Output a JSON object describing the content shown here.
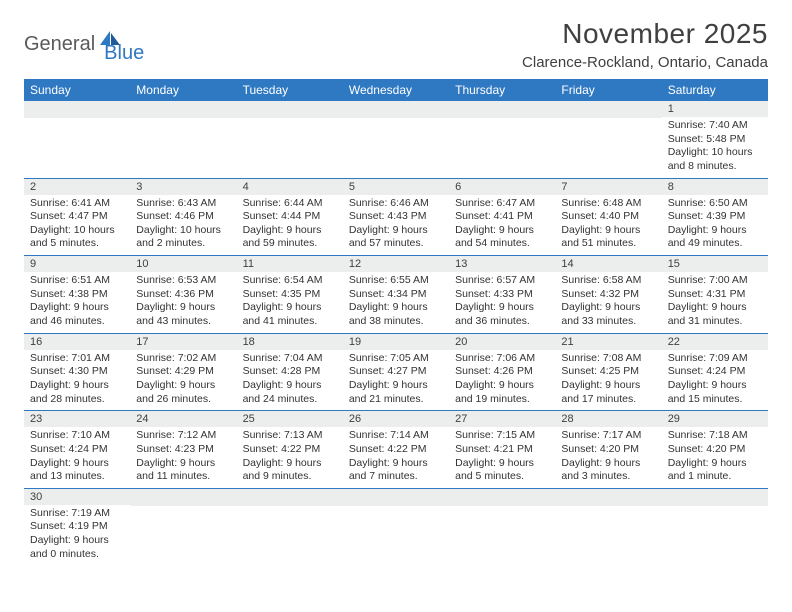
{
  "logo": {
    "part1": "General",
    "part2": "Blue"
  },
  "title": "November 2025",
  "location": "Clarence-Rockland, Ontario, Canada",
  "colors": {
    "header_bg": "#2f78c2",
    "header_text": "#ffffff",
    "daynum_bg": "#eceded",
    "border": "#2f78c2",
    "logo_gray": "#5a5a5a",
    "logo_blue": "#2f78c2",
    "text": "#333333"
  },
  "weekdays": [
    "Sunday",
    "Monday",
    "Tuesday",
    "Wednesday",
    "Thursday",
    "Friday",
    "Saturday"
  ],
  "weeks": [
    [
      null,
      null,
      null,
      null,
      null,
      null,
      {
        "n": "1",
        "sr": "Sunrise: 7:40 AM",
        "ss": "Sunset: 5:48 PM",
        "d1": "Daylight: 10 hours",
        "d2": "and 8 minutes."
      }
    ],
    [
      {
        "n": "2",
        "sr": "Sunrise: 6:41 AM",
        "ss": "Sunset: 4:47 PM",
        "d1": "Daylight: 10 hours",
        "d2": "and 5 minutes."
      },
      {
        "n": "3",
        "sr": "Sunrise: 6:43 AM",
        "ss": "Sunset: 4:46 PM",
        "d1": "Daylight: 10 hours",
        "d2": "and 2 minutes."
      },
      {
        "n": "4",
        "sr": "Sunrise: 6:44 AM",
        "ss": "Sunset: 4:44 PM",
        "d1": "Daylight: 9 hours",
        "d2": "and 59 minutes."
      },
      {
        "n": "5",
        "sr": "Sunrise: 6:46 AM",
        "ss": "Sunset: 4:43 PM",
        "d1": "Daylight: 9 hours",
        "d2": "and 57 minutes."
      },
      {
        "n": "6",
        "sr": "Sunrise: 6:47 AM",
        "ss": "Sunset: 4:41 PM",
        "d1": "Daylight: 9 hours",
        "d2": "and 54 minutes."
      },
      {
        "n": "7",
        "sr": "Sunrise: 6:48 AM",
        "ss": "Sunset: 4:40 PM",
        "d1": "Daylight: 9 hours",
        "d2": "and 51 minutes."
      },
      {
        "n": "8",
        "sr": "Sunrise: 6:50 AM",
        "ss": "Sunset: 4:39 PM",
        "d1": "Daylight: 9 hours",
        "d2": "and 49 minutes."
      }
    ],
    [
      {
        "n": "9",
        "sr": "Sunrise: 6:51 AM",
        "ss": "Sunset: 4:38 PM",
        "d1": "Daylight: 9 hours",
        "d2": "and 46 minutes."
      },
      {
        "n": "10",
        "sr": "Sunrise: 6:53 AM",
        "ss": "Sunset: 4:36 PM",
        "d1": "Daylight: 9 hours",
        "d2": "and 43 minutes."
      },
      {
        "n": "11",
        "sr": "Sunrise: 6:54 AM",
        "ss": "Sunset: 4:35 PM",
        "d1": "Daylight: 9 hours",
        "d2": "and 41 minutes."
      },
      {
        "n": "12",
        "sr": "Sunrise: 6:55 AM",
        "ss": "Sunset: 4:34 PM",
        "d1": "Daylight: 9 hours",
        "d2": "and 38 minutes."
      },
      {
        "n": "13",
        "sr": "Sunrise: 6:57 AM",
        "ss": "Sunset: 4:33 PM",
        "d1": "Daylight: 9 hours",
        "d2": "and 36 minutes."
      },
      {
        "n": "14",
        "sr": "Sunrise: 6:58 AM",
        "ss": "Sunset: 4:32 PM",
        "d1": "Daylight: 9 hours",
        "d2": "and 33 minutes."
      },
      {
        "n": "15",
        "sr": "Sunrise: 7:00 AM",
        "ss": "Sunset: 4:31 PM",
        "d1": "Daylight: 9 hours",
        "d2": "and 31 minutes."
      }
    ],
    [
      {
        "n": "16",
        "sr": "Sunrise: 7:01 AM",
        "ss": "Sunset: 4:30 PM",
        "d1": "Daylight: 9 hours",
        "d2": "and 28 minutes."
      },
      {
        "n": "17",
        "sr": "Sunrise: 7:02 AM",
        "ss": "Sunset: 4:29 PM",
        "d1": "Daylight: 9 hours",
        "d2": "and 26 minutes."
      },
      {
        "n": "18",
        "sr": "Sunrise: 7:04 AM",
        "ss": "Sunset: 4:28 PM",
        "d1": "Daylight: 9 hours",
        "d2": "and 24 minutes."
      },
      {
        "n": "19",
        "sr": "Sunrise: 7:05 AM",
        "ss": "Sunset: 4:27 PM",
        "d1": "Daylight: 9 hours",
        "d2": "and 21 minutes."
      },
      {
        "n": "20",
        "sr": "Sunrise: 7:06 AM",
        "ss": "Sunset: 4:26 PM",
        "d1": "Daylight: 9 hours",
        "d2": "and 19 minutes."
      },
      {
        "n": "21",
        "sr": "Sunrise: 7:08 AM",
        "ss": "Sunset: 4:25 PM",
        "d1": "Daylight: 9 hours",
        "d2": "and 17 minutes."
      },
      {
        "n": "22",
        "sr": "Sunrise: 7:09 AM",
        "ss": "Sunset: 4:24 PM",
        "d1": "Daylight: 9 hours",
        "d2": "and 15 minutes."
      }
    ],
    [
      {
        "n": "23",
        "sr": "Sunrise: 7:10 AM",
        "ss": "Sunset: 4:24 PM",
        "d1": "Daylight: 9 hours",
        "d2": "and 13 minutes."
      },
      {
        "n": "24",
        "sr": "Sunrise: 7:12 AM",
        "ss": "Sunset: 4:23 PM",
        "d1": "Daylight: 9 hours",
        "d2": "and 11 minutes."
      },
      {
        "n": "25",
        "sr": "Sunrise: 7:13 AM",
        "ss": "Sunset: 4:22 PM",
        "d1": "Daylight: 9 hours",
        "d2": "and 9 minutes."
      },
      {
        "n": "26",
        "sr": "Sunrise: 7:14 AM",
        "ss": "Sunset: 4:22 PM",
        "d1": "Daylight: 9 hours",
        "d2": "and 7 minutes."
      },
      {
        "n": "27",
        "sr": "Sunrise: 7:15 AM",
        "ss": "Sunset: 4:21 PM",
        "d1": "Daylight: 9 hours",
        "d2": "and 5 minutes."
      },
      {
        "n": "28",
        "sr": "Sunrise: 7:17 AM",
        "ss": "Sunset: 4:20 PM",
        "d1": "Daylight: 9 hours",
        "d2": "and 3 minutes."
      },
      {
        "n": "29",
        "sr": "Sunrise: 7:18 AM",
        "ss": "Sunset: 4:20 PM",
        "d1": "Daylight: 9 hours",
        "d2": "and 1 minute."
      }
    ],
    [
      {
        "n": "30",
        "sr": "Sunrise: 7:19 AM",
        "ss": "Sunset: 4:19 PM",
        "d1": "Daylight: 9 hours",
        "d2": "and 0 minutes."
      },
      null,
      null,
      null,
      null,
      null,
      null
    ]
  ]
}
